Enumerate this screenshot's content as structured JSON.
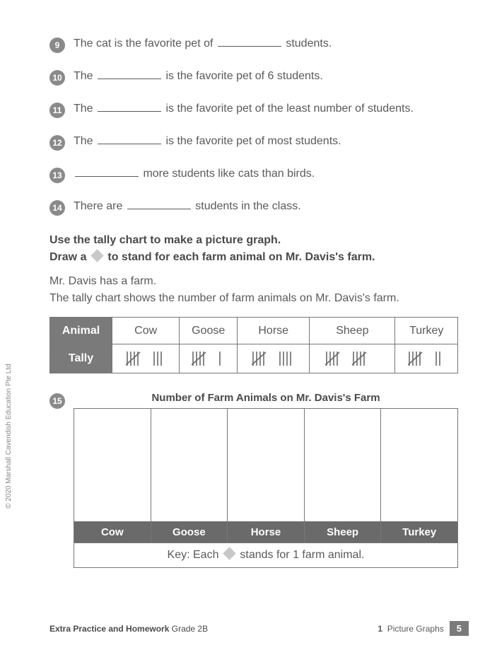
{
  "questions": [
    {
      "num": "9",
      "before": "The cat is the favorite pet of ",
      "after": " students."
    },
    {
      "num": "10",
      "before": "The ",
      "after": " is the favorite pet of 6 students."
    },
    {
      "num": "11",
      "before": "The ",
      "after": " is the favorite pet of the least number of students."
    },
    {
      "num": "12",
      "before": "The ",
      "after": " is the favorite pet of most students."
    },
    {
      "num": "13",
      "before": "",
      "after": " more students like cats than birds."
    },
    {
      "num": "14",
      "before": "There are ",
      "after": " students in the class."
    }
  ],
  "instructions_line1": "Use the tally chart to make a picture graph.",
  "instructions_line2a": "Draw a ",
  "instructions_line2b": " to stand for each farm animal on Mr. Davis's farm.",
  "intro_line1": "Mr. Davis has a farm.",
  "intro_line2": "The tally chart shows the number of farm animals on Mr. Davis's farm.",
  "tally": {
    "row_headers": [
      "Animal",
      "Tally"
    ],
    "columns": [
      "Cow",
      "Goose",
      "Horse",
      "Sheep",
      "Turkey"
    ],
    "counts": [
      8,
      6,
      9,
      10,
      7
    ],
    "stroke_color": "#6a6a6a",
    "stroke_width": 1.6
  },
  "graph": {
    "qnum": "15",
    "title": "Number of Farm Animals on Mr. Davis's Farm",
    "labels": [
      "Cow",
      "Goose",
      "Horse",
      "Sheep",
      "Turkey"
    ],
    "key_before": "Key: Each ",
    "key_after": " stands for 1 farm animal."
  },
  "copyright": "© 2020 Marshall Cavendish Education Pte Ltd",
  "footer": {
    "left_bold": "Extra Practice and Homework",
    "left_grade": " Grade 2B",
    "right_num": "1",
    "right_label": "Picture Graphs",
    "page": "5"
  }
}
